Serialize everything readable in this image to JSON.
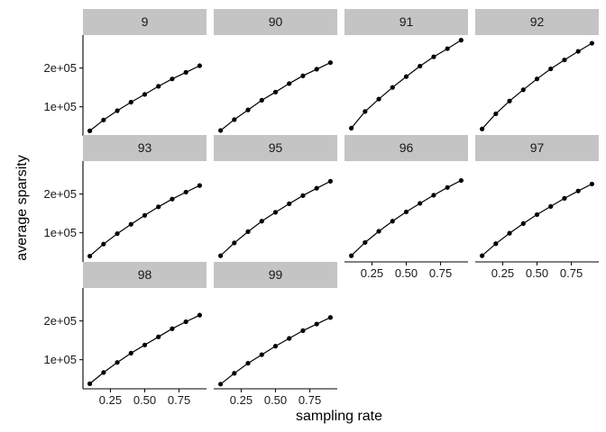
{
  "chart_data": {
    "type": "line",
    "xlabel": "sampling rate",
    "ylabel": "average sparsity",
    "xlim": [
      0.05,
      0.95
    ],
    "ylim": [
      25000,
      285000
    ],
    "x_ticks": [
      0.25,
      0.5,
      0.75
    ],
    "x_tick_labels": [
      "0.25",
      "0.50",
      "0.75"
    ],
    "y_ticks": [
      100000,
      200000
    ],
    "y_tick_labels": [
      "1e+05",
      "2e+05"
    ],
    "grid": false,
    "legend": "none",
    "x": [
      0.1,
      0.2,
      0.3,
      0.4,
      0.5,
      0.6,
      0.7,
      0.8,
      0.9
    ],
    "panels": [
      {
        "label": "9",
        "values": [
          38000,
          66000,
          90000,
          112000,
          132000,
          153000,
          172000,
          189000,
          206000
        ]
      },
      {
        "label": "90",
        "values": [
          39000,
          67000,
          92000,
          117000,
          138000,
          160000,
          180000,
          197000,
          214000
        ]
      },
      {
        "label": "91",
        "values": [
          45000,
          88000,
          120000,
          150000,
          178000,
          205000,
          229000,
          250000,
          272000
        ]
      },
      {
        "label": "92",
        "values": [
          43000,
          82000,
          115000,
          144000,
          172000,
          198000,
          221000,
          243000,
          264000
        ]
      },
      {
        "label": "93",
        "values": [
          40000,
          71000,
          98000,
          122000,
          145000,
          167000,
          187000,
          205000,
          222000
        ]
      },
      {
        "label": "95",
        "values": [
          41000,
          74000,
          103000,
          130000,
          153000,
          175000,
          196000,
          215000,
          233000
        ]
      },
      {
        "label": "96",
        "values": [
          41000,
          75000,
          104000,
          130000,
          154000,
          176000,
          197000,
          217000,
          235000
        ]
      },
      {
        "label": "97",
        "values": [
          41000,
          72000,
          99000,
          124000,
          147000,
          168000,
          189000,
          208000,
          226000
        ]
      },
      {
        "label": "98",
        "values": [
          38000,
          67000,
          93000,
          117000,
          138000,
          159000,
          180000,
          198000,
          215000
        ]
      },
      {
        "label": "99",
        "values": [
          37000,
          65000,
          91000,
          113000,
          135000,
          155000,
          175000,
          192000,
          209000
        ]
      }
    ]
  },
  "colors": {
    "strip_fill": "#c4c4c4",
    "line": "#000000",
    "point": "#000000",
    "axis": "#000000",
    "background": "#ffffff"
  }
}
